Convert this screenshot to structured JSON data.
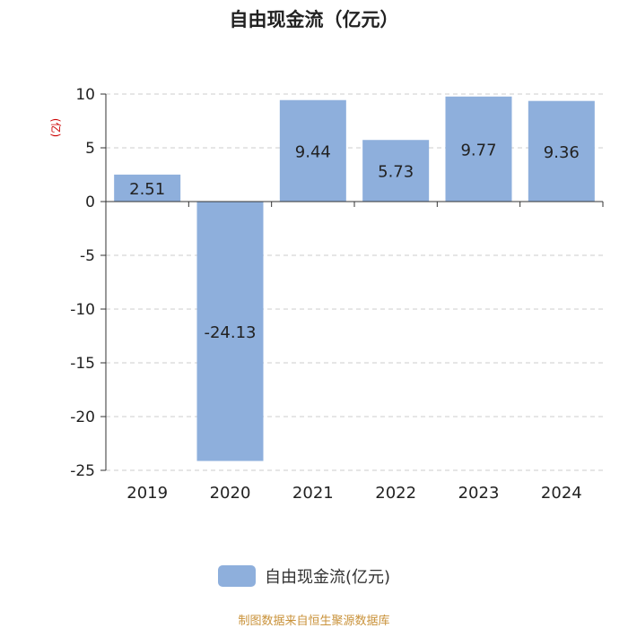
{
  "title": "自由现金流（亿元）",
  "ylabel": "(亿)",
  "legend": {
    "label": "自由现金流(亿元)"
  },
  "source": "制图数据来自恒生聚源数据库",
  "colors": {
    "bar": "#8eafdc",
    "grid": "#cccccc",
    "axis": "#333333",
    "text": "#222222"
  },
  "chart_data": {
    "type": "bar",
    "categories": [
      "2019",
      "2020",
      "2021",
      "2022",
      "2023",
      "2024"
    ],
    "series": [
      {
        "name": "自由现金流(亿元)",
        "values": [
          2.51,
          -24.13,
          9.44,
          5.73,
          9.77,
          9.36
        ]
      }
    ],
    "labels": [
      "2.51",
      "-24.13",
      "9.44",
      "5.73",
      "9.77",
      "9.36"
    ],
    "ylim": [
      -25,
      10
    ],
    "yticks": [
      "10",
      "5",
      "0",
      "-5",
      "-10",
      "-15",
      "-20",
      "-25"
    ],
    "grid": true,
    "legend_position": "bottom"
  }
}
